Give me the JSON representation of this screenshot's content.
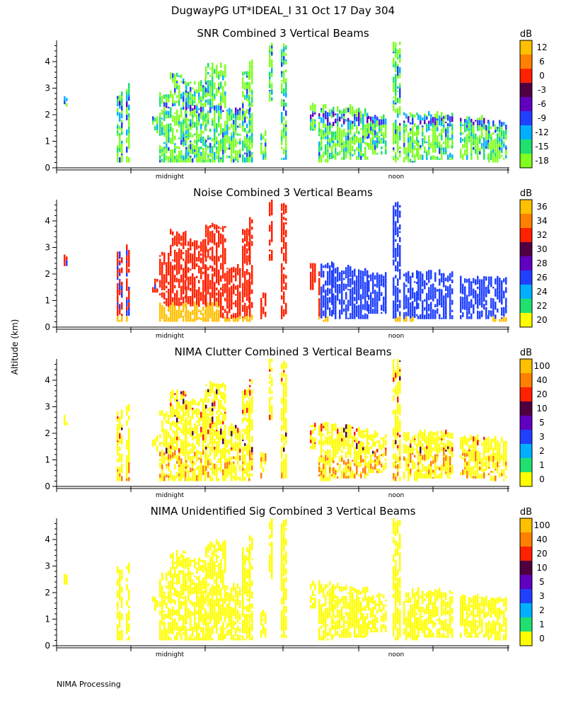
{
  "figure": {
    "title": "DugwayPG UT*IDEAL_I  31 Oct 17 Day 304",
    "ylabel": "Altitude (km)",
    "footer": "NIMA Processing",
    "xtick_labels": [
      "midnight",
      "noon"
    ]
  },
  "chart_data": [
    {
      "type": "heatmap",
      "title": "SNR Combined 3 Vertical Beams",
      "ylabel": "Altitude (km)",
      "ylim": [
        0,
        4.8
      ],
      "yticks": [
        0,
        1,
        2,
        3,
        4
      ],
      "xtick_labels": [
        "midnight",
        "noon"
      ],
      "colorbar": {
        "unit": "dB",
        "labels": [
          "12",
          "6",
          "0",
          "-3",
          "-6",
          "-9",
          "-12",
          "-15",
          "-18"
        ],
        "colors": [
          "#ffc000",
          "#ff8000",
          "#ff2000",
          "#500040",
          "#6000c0",
          "#2040ff",
          "#00b0ff",
          "#20e070",
          "#80ff20"
        ]
      },
      "scheme": "snr"
    },
    {
      "type": "heatmap",
      "title": "Noise Combined 3 Vertical Beams",
      "ylabel": "Altitude (km)",
      "ylim": [
        0,
        4.8
      ],
      "yticks": [
        0,
        1,
        2,
        3,
        4
      ],
      "xtick_labels": [
        "midnight",
        "noon"
      ],
      "colorbar": {
        "unit": "dB",
        "labels": [
          "36",
          "34",
          "32",
          "30",
          "28",
          "26",
          "24",
          "22",
          "20"
        ],
        "colors": [
          "#ffc000",
          "#ff8000",
          "#ff2000",
          "#500040",
          "#6000c0",
          "#2040ff",
          "#00b0ff",
          "#20e070",
          "#ffff00"
        ]
      },
      "scheme": "noise"
    },
    {
      "type": "heatmap",
      "title": "NIMA Clutter Combined 3 Vertical Beams",
      "ylabel": "Altitude (km)",
      "ylim": [
        0,
        4.8
      ],
      "yticks": [
        0,
        1,
        2,
        3,
        4
      ],
      "xtick_labels": [
        "midnight",
        "noon"
      ],
      "colorbar": {
        "unit": "dB",
        "labels": [
          "100",
          "40",
          "20",
          "10",
          "5",
          "3",
          "2",
          "1",
          "0"
        ],
        "colors": [
          "#ffc000",
          "#ff8000",
          "#ff2000",
          "#500040",
          "#6000c0",
          "#2040ff",
          "#00b0ff",
          "#20e070",
          "#ffff00"
        ]
      },
      "scheme": "clutter"
    },
    {
      "type": "heatmap",
      "title": "NIMA Unidentified Sig Combined 3 Vertical Beams",
      "ylabel": "Altitude (km)",
      "ylim": [
        0,
        4.8
      ],
      "yticks": [
        0,
        1,
        2,
        3,
        4
      ],
      "xtick_labels": [
        "midnight",
        "noon"
      ],
      "colorbar": {
        "unit": "dB",
        "labels": [
          "100",
          "40",
          "20",
          "10",
          "5",
          "3",
          "2",
          "1",
          "0"
        ],
        "colors": [
          "#ffc000",
          "#ff8000",
          "#ff2000",
          "#500040",
          "#6000c0",
          "#2040ff",
          "#00b0ff",
          "#20e070",
          "#ffff00"
        ]
      },
      "scheme": "unid"
    }
  ]
}
